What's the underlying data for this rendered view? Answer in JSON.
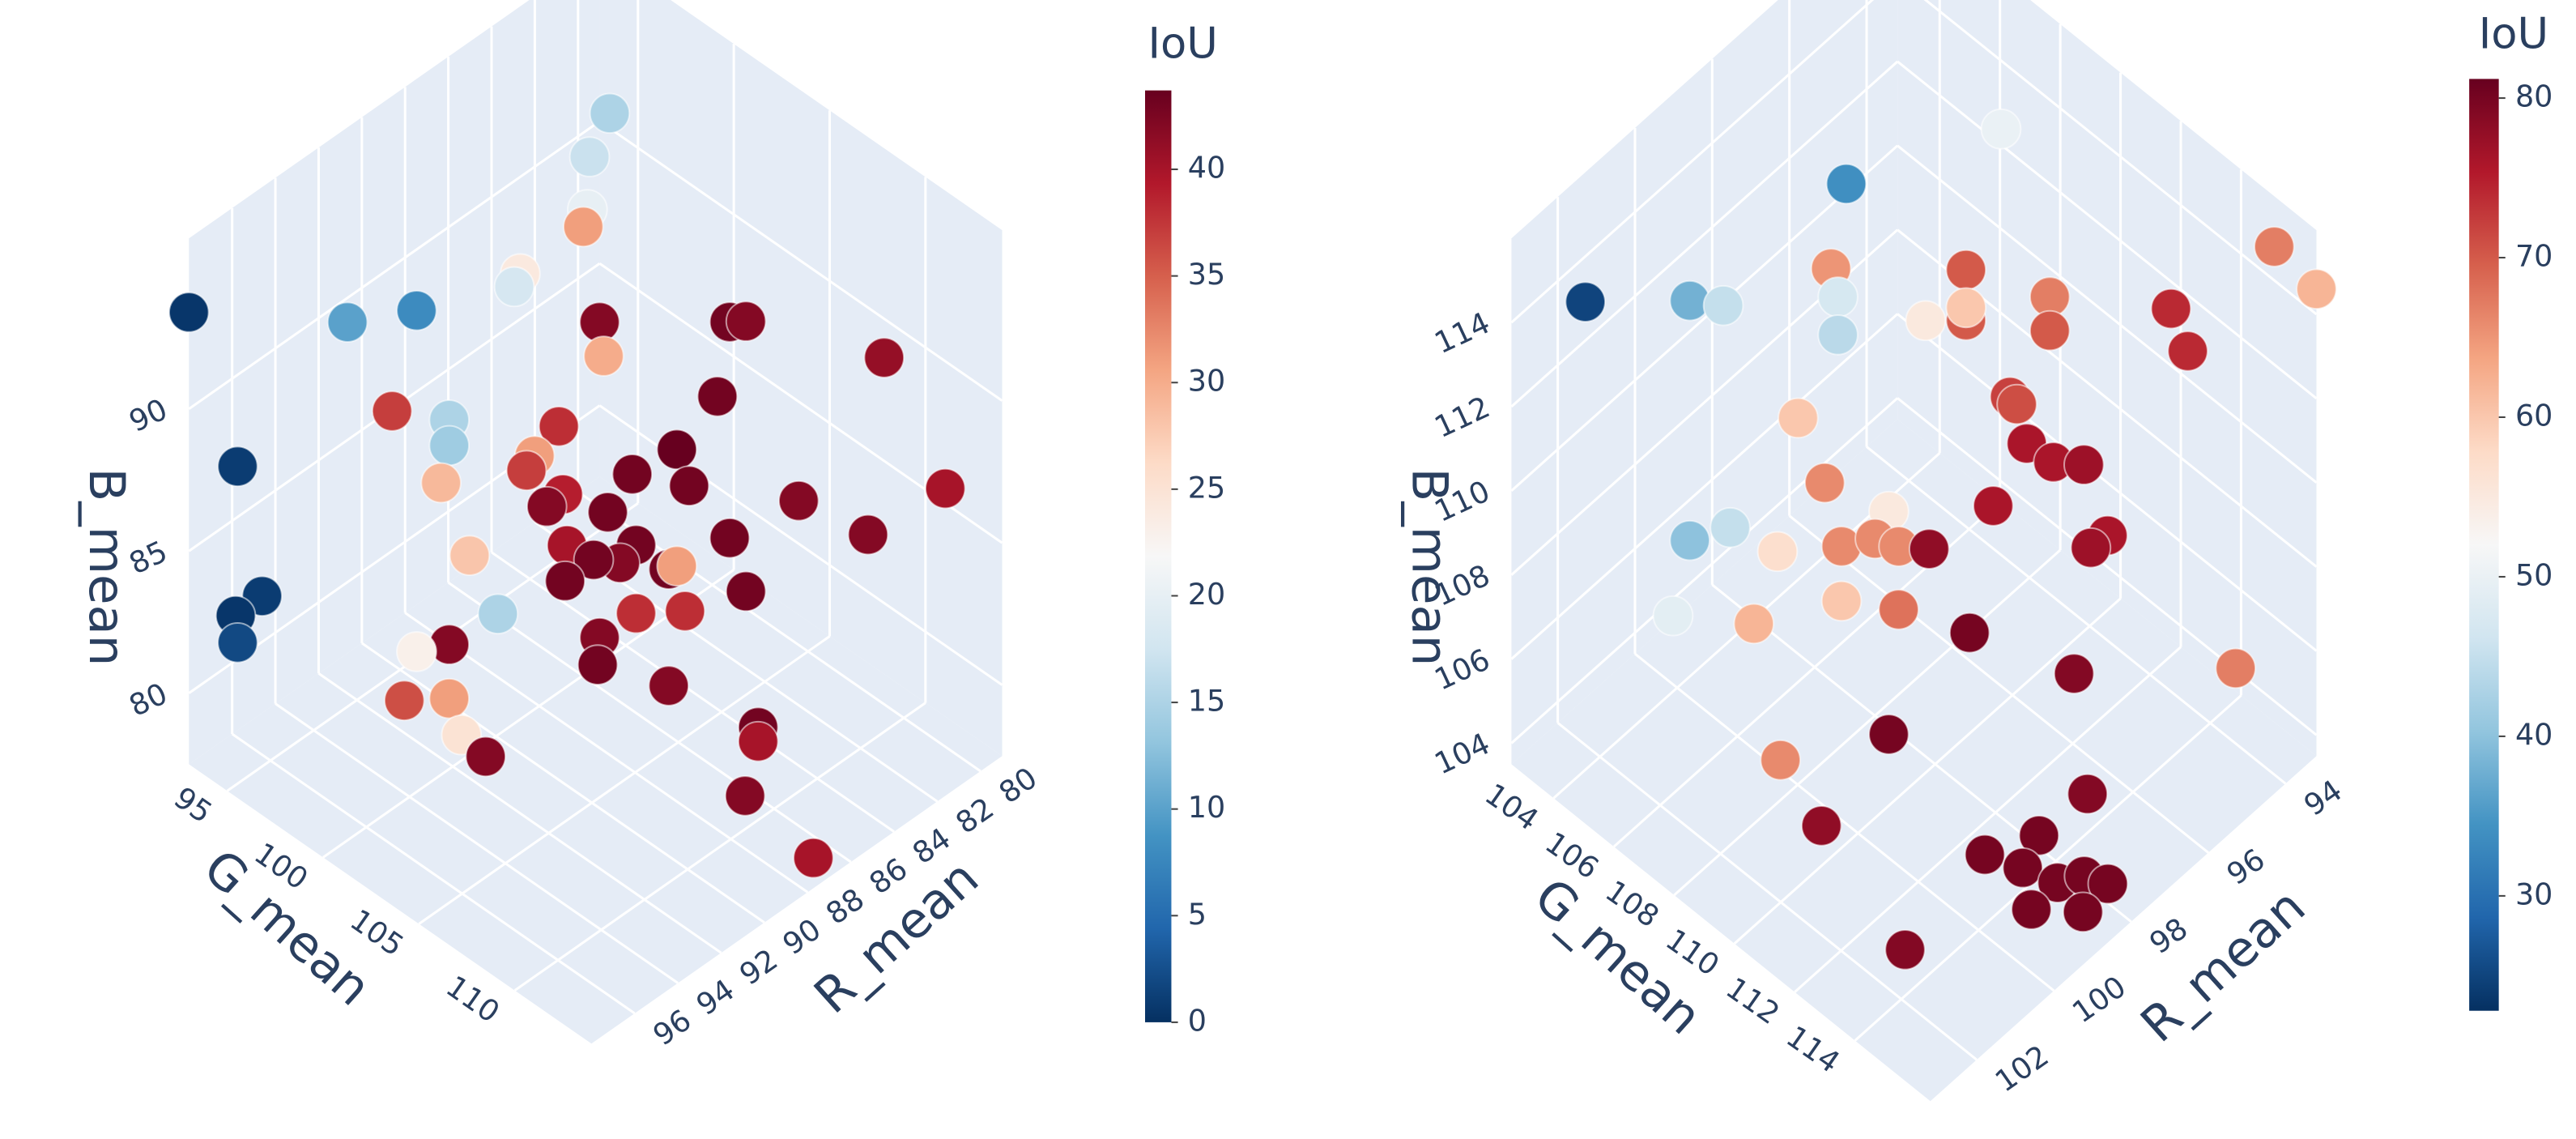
{
  "chart_data": [
    {
      "type": "scatter3d",
      "x_label": "R_mean",
      "y_label": "G_mean",
      "z_label": "B_mean",
      "colorbar_title": "IoU",
      "xlim": [
        79,
        98
      ],
      "ylim": [
        93,
        114
      ],
      "zlim": [
        77.5,
        96
      ],
      "clim": [
        0,
        43.7
      ],
      "xticks": [
        80,
        82,
        84,
        86,
        88,
        90,
        92,
        94,
        96
      ],
      "yticks": [
        95,
        100,
        105,
        110
      ],
      "zticks": [
        80,
        85,
        90
      ],
      "cticks": [
        0,
        5,
        10,
        15,
        20,
        25,
        30,
        35,
        40
      ],
      "colorscale": [
        "#053061",
        "#2166ac",
        "#4393c3",
        "#92c5de",
        "#d1e5f0",
        "#f7f7f7",
        "#fddbc7",
        "#f4a582",
        "#d6604d",
        "#b2182b",
        "#67001f"
      ],
      "x": [
        98,
        96.9,
        96.3,
        96.9,
        96.9,
        94.3,
        92.7,
        83.5,
        83.9,
        84,
        84.1,
        85.6,
        85.7,
        88.4,
        88.3,
        85.4,
        85.0,
        81.8,
        85.7,
        93.3,
        91.9,
        91.9,
        92.1,
        89.4,
        89.9,
        90.1,
        87.6,
        86.6,
        86.3,
        89.3,
        89.6,
        88.2,
        83.8,
        80.3,
        82.1,
        89.2,
        87.6,
        85.4,
        87.9,
        88.5,
        89.2,
        86.8,
        86.6,
        91.4,
        85.0,
        87.6,
        86.4,
        90.8,
        88.4,
        91.9,
        92.7,
        88.4,
        86.8,
        93.0,
        91.9,
        91.6,
        91.1,
        84.7,
        84.7,
        86.9,
        87.2
      ],
      "y": [
        93,
        94.3,
        94.9,
        94.2,
        94.3,
        97.1,
        98.9,
        98.6,
        98.0,
        98,
        97.9,
        96.3,
        96.1,
        103.6,
        103.7,
        107.0,
        107.4,
        111.0,
        106.7,
        98.3,
        99.7,
        99.7,
        99.5,
        102.6,
        101.9,
        101.7,
        104.4,
        105.6,
        105.9,
        102.7,
        102.2,
        103.8,
        108.8,
        112.5,
        110.5,
        102.8,
        104.6,
        107.0,
        104.1,
        103.4,
        102.7,
        105.4,
        105.6,
        100.2,
        107.4,
        104.6,
        105.8,
        101.0,
        103.6,
        99.7,
        98.9,
        103.5,
        105.4,
        98.6,
        99.7,
        100.0,
        100.7,
        107.7,
        107.7,
        109.5,
        113.4
      ],
      "z": [
        93.4,
        88.0,
        83.4,
        82.7,
        81.8,
        93.0,
        93.4,
        95.3,
        93.7,
        91.9,
        91.3,
        89.7,
        89.2,
        92.9,
        91.7,
        92.9,
        92.9,
        91.6,
        90.3,
        89.9,
        89.5,
        88.6,
        87.3,
        89.3,
        88.2,
        87.7,
        87.5,
        88.4,
        87.1,
        86.9,
        86.4,
        86.2,
        86.6,
        86.9,
        85.3,
        85.1,
        85.1,
        85.3,
        84.4,
        84.5,
        83.8,
        84.2,
        84.3,
        84.7,
        83.4,
        82.7,
        82.7,
        82.7,
        81.8,
        81.6,
        81.4,
        80.8,
        80.1,
        79.7,
        79.7,
        78.4,
        77.7,
        78.6,
        78.1,
        78.2,
        78.0
      ],
      "color_values": [
        0.5,
        1,
        1,
        0.5,
        2,
        10,
        8,
        15,
        17,
        20,
        31,
        24,
        18,
        42,
        30,
        43,
        42,
        41,
        43,
        37,
        15,
        14,
        29,
        38,
        31,
        37,
        43,
        44,
        43,
        39,
        42,
        43,
        42,
        40,
        42,
        40,
        43,
        43,
        42,
        43,
        43,
        43,
        31,
        28,
        43,
        38,
        38,
        15,
        42,
        42,
        23,
        43,
        42,
        36,
        31,
        25,
        42,
        43,
        40,
        42,
        40
      ]
    },
    {
      "type": "scatter3d",
      "x_label": "R_mean",
      "y_label": "G_mean",
      "z_label": "B_mean",
      "colorbar_title": "IoU",
      "xlim": [
        93.2,
        103.2
      ],
      "ylim": [
        102.6,
        116.5
      ],
      "zlim": [
        103.5,
        116
      ],
      "clim": [
        22.8,
        81.2
      ],
      "xticks": [
        94,
        96,
        98,
        100,
        102
      ],
      "yticks": [
        104,
        106,
        108,
        110,
        112,
        114
      ],
      "zticks": [
        104,
        106,
        108,
        110,
        112,
        114
      ],
      "cticks": [
        30,
        40,
        50,
        60,
        70,
        80
      ],
      "colorscale": [
        "#053061",
        "#2166ac",
        "#4393c3",
        "#92c5de",
        "#d1e5f0",
        "#f7f7f7",
        "#fddbc7",
        "#f4a582",
        "#d6604d",
        "#b2182b",
        "#67001f"
      ],
      "x": [
        94.5,
        96.4,
        102.3,
        101.0,
        100.6,
        98.2,
        98.1,
        98.1,
        97.0,
        96.5,
        96.5,
        96.5,
        95.5,
        95.5,
        94.0,
        93.8,
        93.2,
        93.2,
        97.0,
        96.9,
        99.6,
        96.8,
        96.5,
        96.1,
        99.3,
        97.2,
        98.5,
        100.5,
        101.0,
        99.9,
        99.1,
        98.7,
        98.4,
        98.0,
        95.8,
        96.0,
        101.2,
        100.2,
        99.1,
        98.4,
        97.5,
        96.2,
        94.2,
        98.5,
        99.9,
        97.1,
        100.4,
        98.2,
        98.9,
        98.7,
        98.5,
        98.2,
        97.9,
        99.1,
        98.7,
        101.2
      ],
      "y": [
        107.7,
        105.0,
        103.9,
        105.7,
        106.3,
        106.8,
        106.9,
        106.9,
        108.4,
        109.1,
        109.1,
        109.1,
        110.6,
        110.6,
        112.7,
        113.0,
        115.1,
        116.5,
        111.2,
        111.3,
        107.5,
        111.5,
        112.0,
        112.5,
        108.0,
        110.9,
        109.1,
        106.4,
        105.7,
        107.2,
        108.3,
        108.9,
        109.3,
        109.8,
        112.9,
        112.6,
        105.4,
        106.8,
        108.3,
        109.3,
        110.5,
        112.3,
        115.1,
        109.1,
        107.3,
        113.9,
        109.3,
        113.7,
        112.8,
        113.8,
        114.7,
        115.2,
        115.6,
        114.6,
        115.8,
        113.1
      ],
      "z": [
        114.4,
        113.1,
        114.5,
        114.5,
        114.4,
        113.6,
        112.9,
        112.0,
        112.3,
        113.5,
        112.3,
        112.6,
        112.9,
        112.1,
        112.6,
        111.6,
        114.8,
        114.6,
        112.1,
        111.9,
        111.6,
        111.0,
        110.6,
        110.5,
        110.1,
        109.5,
        109.4,
        109.1,
        108.8,
        108.5,
        108.6,
        108.8,
        108.6,
        108.5,
        108.8,
        108.5,
        107.0,
        106.8,
        107.3,
        107.1,
        106.5,
        105.5,
        105.6,
        104.1,
        103.6,
        104.3,
        103.6,
        104.1,
        103.7,
        103.8,
        103.8,
        104.0,
        103.8,
        103.6,
        103.9,
        103.5
      ],
      "color_values": [
        50,
        34,
        25,
        38,
        45,
        65,
        47,
        44,
        55,
        70,
        70,
        60,
        67,
        70,
        74,
        74,
        67,
        62,
        72,
        71,
        60,
        76,
        76,
        77,
        66,
        76,
        55,
        45,
        40,
        57,
        66,
        66,
        66,
        78,
        76,
        77,
        49,
        62,
        60,
        68,
        80,
        79,
        67,
        80,
        66,
        79,
        78,
        80,
        80,
        80,
        80,
        80,
        80,
        80,
        80,
        79
      ]
    }
  ]
}
